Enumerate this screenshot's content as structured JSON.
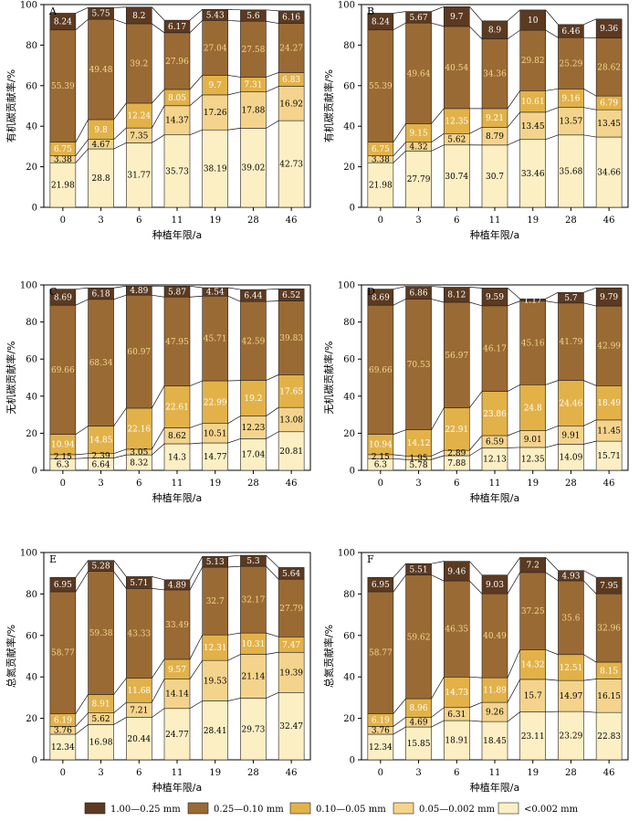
{
  "chart_data": [
    {
      "panel": "A",
      "type": "bar",
      "stacked": true,
      "categories": [
        "0",
        "3",
        "6",
        "11",
        "19",
        "28",
        "46"
      ],
      "xlabel": "种植年限/a",
      "ylabel": "有机碳贡献率/%",
      "ylim": [
        0,
        100
      ],
      "yticks": [
        "0",
        "20",
        "40",
        "60",
        "80",
        "100"
      ],
      "series": [
        {
          "name": "<0.002 mm",
          "values": [
            21.98,
            28.8,
            31.77,
            35.73,
            38.19,
            39.02,
            42.73
          ]
        },
        {
          "name": "0.05—0.002 mm",
          "values": [
            3.38,
            4.67,
            7.35,
            14.37,
            17.26,
            17.88,
            16.92
          ]
        },
        {
          "name": "0.10—0.05 mm",
          "values": [
            6.75,
            9.8,
            12.24,
            8.05,
            9.7,
            7.31,
            6.83
          ]
        },
        {
          "name": "0.25—0.10 mm",
          "values": [
            55.39,
            49.48,
            39.2,
            27.96,
            27.04,
            27.58,
            24.27
          ]
        },
        {
          "name": "1.00—0.25 mm",
          "values": [
            8.24,
            5.75,
            8.2,
            6.17,
            5.43,
            5.6,
            6.16
          ]
        }
      ]
    },
    {
      "panel": "B",
      "type": "bar",
      "stacked": true,
      "categories": [
        "0",
        "3",
        "6",
        "11",
        "19",
        "28",
        "46"
      ],
      "xlabel": "种植年限/a",
      "ylabel": "有机碳贡献率/%",
      "ylim": [
        0,
        100
      ],
      "yticks": [
        "0",
        "20",
        "40",
        "60",
        "80",
        "100"
      ],
      "series": [
        {
          "name": "<0.002 mm",
          "values": [
            21.98,
            27.79,
            30.74,
            30.7,
            33.46,
            35.68,
            34.66
          ]
        },
        {
          "name": "0.05—0.002 mm",
          "values": [
            3.38,
            4.32,
            5.62,
            8.79,
            13.45,
            13.57,
            13.45
          ]
        },
        {
          "name": "0.10—0.05 mm",
          "values": [
            6.75,
            9.15,
            12.35,
            9.21,
            10.61,
            9.16,
            6.79
          ]
        },
        {
          "name": "0.25—0.10 mm",
          "values": [
            55.39,
            49.64,
            40.54,
            34.36,
            29.82,
            25.29,
            28.62
          ]
        },
        {
          "name": "1.00—0.25 mm",
          "values": [
            8.24,
            5.67,
            9.7,
            8.9,
            10,
            6.46,
            9.36
          ]
        }
      ]
    },
    {
      "panel": "C",
      "type": "bar",
      "stacked": true,
      "categories": [
        "0",
        "3",
        "6",
        "11",
        "19",
        "28",
        "46"
      ],
      "xlabel": "种植年限/a",
      "ylabel": "无机碳贡献率/%",
      "ylim": [
        0,
        100
      ],
      "yticks": [
        "0",
        "20",
        "40",
        "60",
        "80",
        "100"
      ],
      "series": [
        {
          "name": "<0.002 mm",
          "values": [
            6.3,
            6.64,
            8.32,
            14.3,
            14.77,
            17.04,
            20.81
          ]
        },
        {
          "name": "0.05—0.002 mm",
          "values": [
            2.15,
            2.39,
            3.05,
            8.62,
            10.51,
            12.23,
            13.08
          ]
        },
        {
          "name": "0.10—0.05 mm",
          "values": [
            10.94,
            14.85,
            22.16,
            22.61,
            22.99,
            19.2,
            17.65
          ]
        },
        {
          "name": "0.25—0.10 mm",
          "values": [
            69.66,
            68.34,
            60.97,
            47.95,
            45.71,
            42.59,
            39.83
          ]
        },
        {
          "name": "1.00—0.25 mm",
          "values": [
            8.69,
            6.18,
            4.89,
            5.87,
            4.54,
            6.44,
            6.52
          ]
        }
      ]
    },
    {
      "panel": "D",
      "type": "bar",
      "stacked": true,
      "categories": [
        "0",
        "3",
        "6",
        "11",
        "19",
        "28",
        "46"
      ],
      "xlabel": "种植年限/a",
      "ylabel": "无机碳贡献率/%",
      "ylim": [
        0,
        100
      ],
      "yticks": [
        "0",
        "20",
        "40",
        "60",
        "80",
        "100"
      ],
      "series": [
        {
          "name": "<0.002 mm",
          "values": [
            6.3,
            5.78,
            7.88,
            12.13,
            12.35,
            14.09,
            15.71
          ]
        },
        {
          "name": "0.05—0.002 mm",
          "values": [
            2.15,
            1.95,
            2.89,
            6.59,
            9.01,
            9.91,
            11.45
          ]
        },
        {
          "name": "0.10—0.05 mm",
          "values": [
            10.94,
            14.12,
            22.91,
            23.86,
            24.8,
            24.46,
            18.49
          ]
        },
        {
          "name": "0.25—0.10 mm",
          "values": [
            69.66,
            70.53,
            56.97,
            46.17,
            45.16,
            41.79,
            42.99
          ]
        },
        {
          "name": "1.00—0.25 mm",
          "values": [
            8.69,
            6.86,
            8.12,
            9.59,
            1.17,
            5.7,
            9.79
          ]
        }
      ]
    },
    {
      "panel": "E",
      "type": "bar",
      "stacked": true,
      "categories": [
        "0",
        "3",
        "6",
        "11",
        "19",
        "28",
        "46"
      ],
      "xlabel": "种植年限/a",
      "ylabel": "总氮贡献率/%",
      "ylim": [
        0,
        100
      ],
      "yticks": [
        "0",
        "20",
        "40",
        "60",
        "80",
        "100"
      ],
      "series": [
        {
          "name": "<0.002 mm",
          "values": [
            12.34,
            16.98,
            20.44,
            24.77,
            28.41,
            29.73,
            32.47
          ]
        },
        {
          "name": "0.05—0.002 mm",
          "values": [
            3.76,
            5.62,
            7.21,
            14.14,
            19.53,
            21.14,
            19.39
          ]
        },
        {
          "name": "0.10—0.05 mm",
          "values": [
            6.19,
            8.91,
            11.68,
            9.57,
            12.31,
            10.31,
            7.47
          ]
        },
        {
          "name": "0.25—0.10 mm",
          "values": [
            58.77,
            59.38,
            43.33,
            33.49,
            32.7,
            32.17,
            27.79
          ]
        },
        {
          "name": "1.00—0.25 mm",
          "values": [
            6.95,
            5.28,
            5.71,
            4.89,
            5.13,
            5.3,
            5.64
          ]
        }
      ]
    },
    {
      "panel": "F",
      "type": "bar",
      "stacked": true,
      "categories": [
        "0",
        "3",
        "6",
        "11",
        "19",
        "28",
        "46"
      ],
      "xlabel": "种植年限/a",
      "ylabel": "总氮贡献率/%",
      "ylim": [
        0,
        100
      ],
      "yticks": [
        "0",
        "20",
        "40",
        "60",
        "80",
        "100"
      ],
      "series": [
        {
          "name": "<0.002 mm",
          "values": [
            12.34,
            15.85,
            18.91,
            18.45,
            23.11,
            23.29,
            22.83
          ]
        },
        {
          "name": "0.05—0.002 mm",
          "values": [
            3.76,
            4.69,
            6.31,
            9.26,
            15.7,
            14.97,
            16.15
          ]
        },
        {
          "name": "0.10—0.05 mm",
          "values": [
            6.19,
            8.96,
            14.73,
            11.89,
            14.32,
            12.51,
            8.15
          ]
        },
        {
          "name": "0.25—0.10 mm",
          "values": [
            58.77,
            59.62,
            46.35,
            40.49,
            37.25,
            35.6,
            32.96
          ]
        },
        {
          "name": "1.00—0.25 mm",
          "values": [
            6.95,
            5.51,
            9.46,
            9.03,
            7.2,
            4.93,
            7.95
          ]
        }
      ]
    }
  ],
  "legend": {
    "entries": [
      {
        "label": "1.00—0.25 mm",
        "color": "#5b3a21"
      },
      {
        "label": "0.25—0.10 mm",
        "color": "#9a6a34"
      },
      {
        "label": "0.10—0.05 mm",
        "color": "#e2b249"
      },
      {
        "label": "0.05—0.002 mm",
        "color": "#f4d48c"
      },
      {
        "label": "<0.002 mm",
        "color": "#fcefc4"
      }
    ]
  },
  "colors": {
    "<0.002 mm": "#fcefc4",
    "0.05—0.002 mm": "#f4d48c",
    "0.10—0.05 mm": "#e2b249",
    "0.25—0.10 mm": "#9a6a34",
    "1.00—0.25 mm": "#5b3a21"
  },
  "label_text_colors": {
    "<0.002 mm": "#000000",
    "0.05—0.002 mm": "#000000",
    "0.10—0.05 mm": "#ffffff",
    "0.25—0.10 mm": "#f2d98a",
    "1.00—0.25 mm": "#ffffff"
  }
}
